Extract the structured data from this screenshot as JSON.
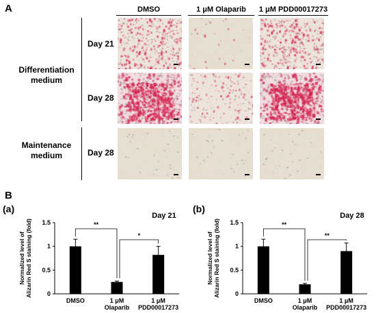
{
  "panel_a": {
    "letter": "A",
    "columns": [
      "DMSO",
      "1 μM Olaparib",
      "1 μM PDD00017273"
    ],
    "groups": [
      {
        "label": "Differentiation medium",
        "days": [
          "Day 21",
          "Day 28"
        ]
      },
      {
        "label": "Maintenance medium",
        "days": [
          "Day 28"
        ]
      }
    ]
  },
  "panel_b": {
    "letter": "B",
    "sublabels": [
      "(a)",
      "(b)"
    ]
  },
  "chart_data": [
    {
      "type": "bar",
      "title": "Day 21",
      "categories": [
        "DMSO",
        "1 μM Olaparib",
        "1 μM PDD00017273"
      ],
      "category_lines": [
        [
          "DMSO"
        ],
        [
          "1 μM",
          "Olaparib"
        ],
        [
          "1 μM",
          "PDD00017273"
        ]
      ],
      "values": [
        1.0,
        0.25,
        0.82
      ],
      "errors": [
        0.15,
        0.02,
        0.18
      ],
      "ylabel_lines": [
        "Normalized level of",
        "Alizarin Red S staining (fold)"
      ],
      "ylim": [
        0,
        1.5
      ],
      "yticks": [
        0,
        0.5,
        1,
        1.5
      ],
      "ytick_labels": [
        "0",
        "0.5",
        "1",
        "1.5"
      ],
      "significance": [
        {
          "from": 0,
          "to": 1,
          "label": "**"
        },
        {
          "from": 1,
          "to": 2,
          "label": "*"
        }
      ]
    },
    {
      "type": "bar",
      "title": "Day 28",
      "categories": [
        "DMSO",
        "1 μM Olaparib",
        "1 μM PDD00017273"
      ],
      "category_lines": [
        [
          "DMSO"
        ],
        [
          "1 μM",
          "Olaparib"
        ],
        [
          "1 μM",
          "PDD00017273"
        ]
      ],
      "values": [
        1.0,
        0.2,
        0.9
      ],
      "errors": [
        0.15,
        0.02,
        0.17
      ],
      "ylabel_lines": [
        "Normalized level of",
        "Alizarin Red S staining (fold)"
      ],
      "ylim": [
        0,
        1.5
      ],
      "yticks": [
        0,
        0.5,
        1,
        1.5
      ],
      "ytick_labels": [
        "0",
        "0.5",
        "1",
        "1.5"
      ],
      "significance": [
        {
          "from": 0,
          "to": 1,
          "label": "**"
        },
        {
          "from": 1,
          "to": 2,
          "label": "**"
        }
      ]
    }
  ],
  "micrographs": [
    {
      "name": "micrograph-diff-day21-dmso",
      "stain": "medium"
    },
    {
      "name": "micrograph-diff-day21-olaparib",
      "stain": "faint"
    },
    {
      "name": "micrograph-diff-day21-pdd",
      "stain": "medium"
    },
    {
      "name": "micrograph-diff-day28-dmso",
      "stain": "heavy"
    },
    {
      "name": "micrograph-diff-day28-olaparib",
      "stain": "light"
    },
    {
      "name": "micrograph-diff-day28-pdd",
      "stain": "heavy"
    },
    {
      "name": "micrograph-maint-day28-dmso",
      "stain": "none"
    },
    {
      "name": "micrograph-maint-day28-olaparib",
      "stain": "none"
    },
    {
      "name": "micrograph-maint-day28-pdd",
      "stain": "none"
    }
  ],
  "colors": {
    "stain_red": "#d6204f",
    "background_beige": "#e4dccd",
    "bar": "#000000"
  }
}
